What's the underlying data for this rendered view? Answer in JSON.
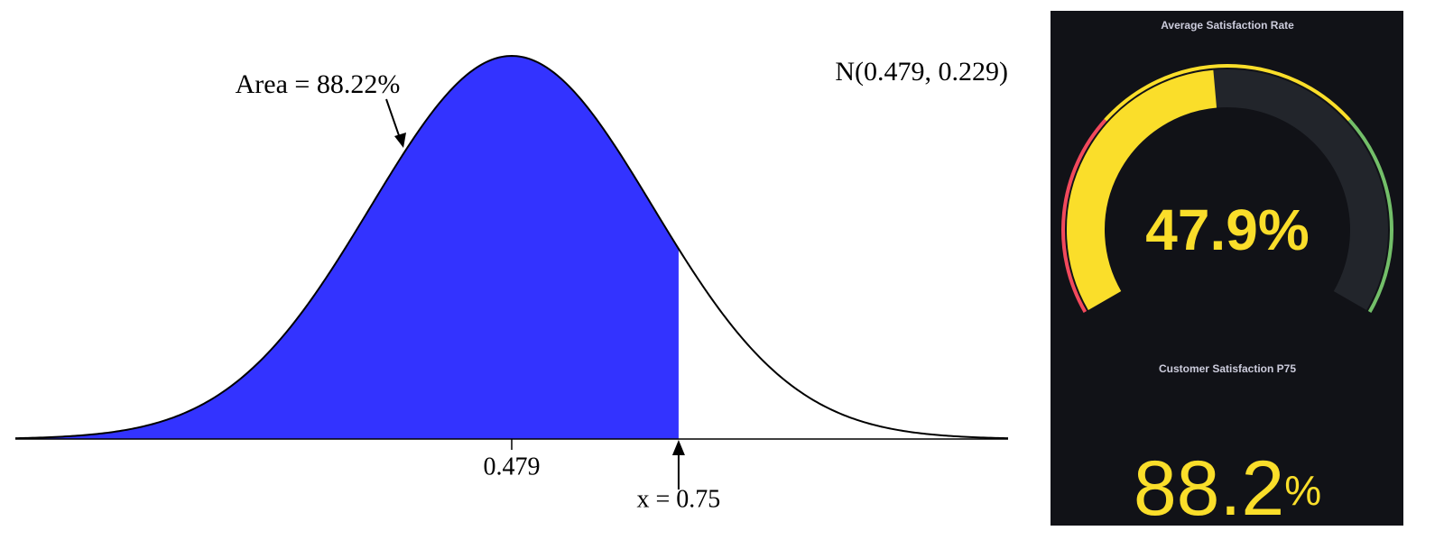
{
  "normal_plot": {
    "distribution": {
      "label": "N(0.479, 0.229)",
      "mean": 0.479,
      "sd": 0.229
    },
    "area_label": "Area = 88.22%",
    "xlim": [
      -0.327,
      1.285
    ],
    "xticks": [
      0.479
    ],
    "marker": {
      "value": 0.75,
      "label": "x = 0.75"
    },
    "fill_color": "#3333ff"
  },
  "dashboard": {
    "panels": [
      {
        "type": "gauge",
        "title": "Average Satisfaction Rate",
        "value": 47.9,
        "unit": "%",
        "min": 0,
        "max": 100,
        "color": "#fade2a",
        "thresholds": [
          {
            "value": 0,
            "color": "#f2495c"
          },
          {
            "value": 30,
            "color": "#fade2a"
          },
          {
            "value": 70,
            "color": "#73bf69"
          }
        ]
      },
      {
        "type": "stat",
        "title": "Customer Satisfaction P75",
        "value": 88.2,
        "unit": "%",
        "color": "#fade2a"
      }
    ]
  }
}
